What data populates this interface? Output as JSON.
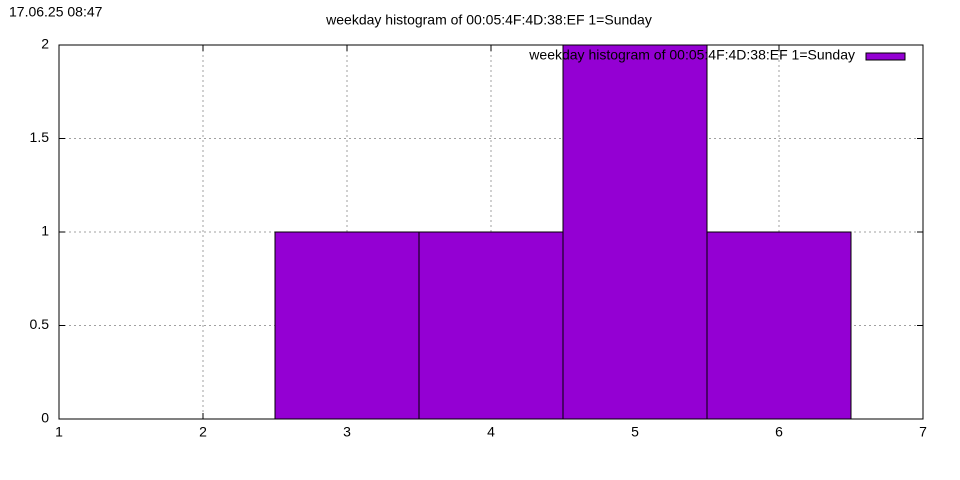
{
  "timestamp": "17.06.25 08:47",
  "chart_data": {
    "type": "histogram",
    "title": "weekday histogram of 00:05:4F:4D:38:EF 1=Sunday",
    "bins": [
      2.5,
      3.5,
      4.5,
      5.5,
      6.5
    ],
    "series": [
      {
        "name": "weekday histogram of 00:05:4F:4D:38:EF 1=Sunday",
        "color": "#9400d3",
        "values": [
          1,
          1,
          2,
          1
        ]
      }
    ],
    "xlim": [
      1,
      7
    ],
    "xticks": [
      1,
      2,
      3,
      4,
      5,
      6,
      7
    ],
    "ylim": [
      0,
      2
    ],
    "yticks": [
      0,
      0.5,
      1,
      1.5,
      2
    ],
    "grid": true,
    "legend": "top-right"
  }
}
